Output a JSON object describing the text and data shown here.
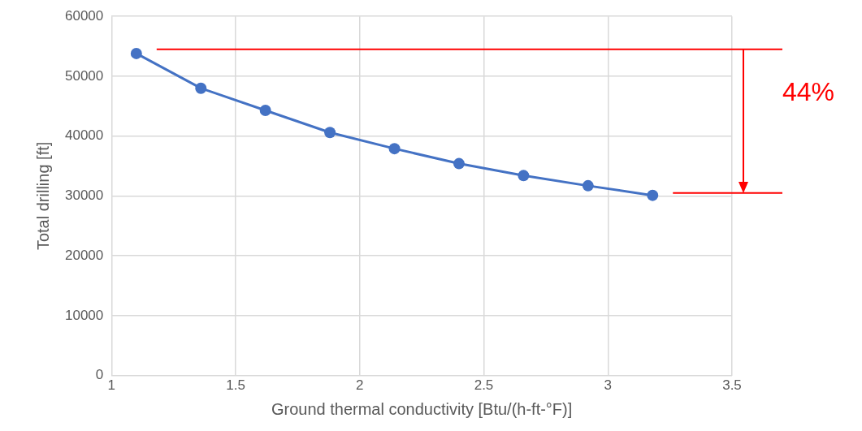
{
  "chart_data": {
    "type": "line",
    "xlabel": "Ground thermal conductivity [Btu/(h-ft-°F)]",
    "ylabel": "Total drilling [ft]",
    "x": [
      1.1,
      1.36,
      1.62,
      1.88,
      2.14,
      2.4,
      2.66,
      2.92,
      3.18
    ],
    "series": [
      {
        "color": "#4472c4",
        "values": [
          53800,
          48000,
          44300,
          40600,
          37900,
          35400,
          33400,
          31700,
          30100
        ]
      }
    ],
    "xlim": [
      1,
      3.5
    ],
    "xticks": [
      1,
      1.5,
      2,
      2.5,
      3,
      3.5
    ],
    "ylim": [
      0,
      60000
    ],
    "yticks": [
      0,
      10000,
      20000,
      30000,
      40000,
      50000,
      60000
    ],
    "grid": true,
    "legend": false,
    "marker": "circle",
    "line_style": "solid",
    "ref_lines": [
      {
        "axis": "y",
        "value": 54500,
        "color": "#ff0000"
      },
      {
        "axis": "y",
        "value": 30500,
        "color": "#ff0000"
      }
    ],
    "annotations": [
      "44%"
    ]
  }
}
